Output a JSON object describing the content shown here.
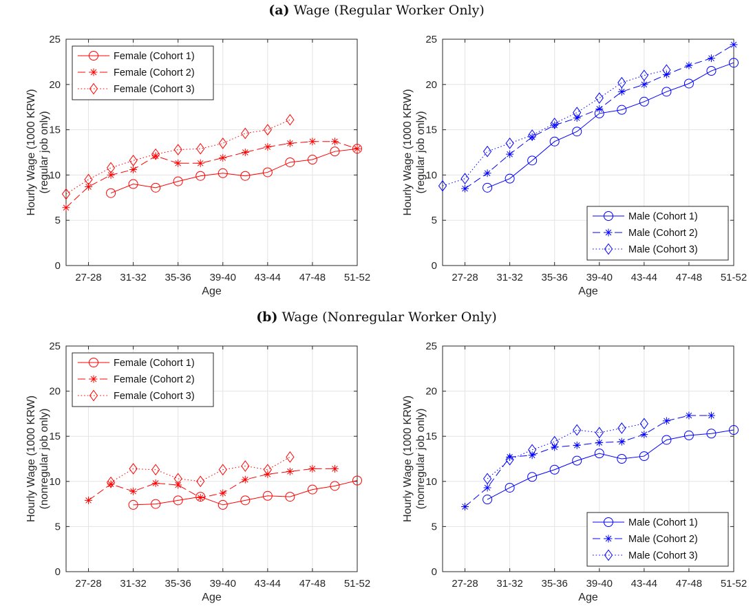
{
  "titles": {
    "a_prefix": "(a)",
    "a_text": "Wage (Regular Worker Only)",
    "b_prefix": "(b)",
    "b_text": "Wage (Nonregular Worker Only)"
  },
  "colors": {
    "female": "#ff0000",
    "male": "#0000ff",
    "grid": "#e3e3e3",
    "axis": "#262626"
  },
  "chart_data": [
    {
      "id": "a-female",
      "type": "line",
      "xlabel": "Age",
      "ylabel": [
        "Hourly Wage (1000 KRW)",
        "(regular job only)"
      ],
      "x_tick_labels": [
        "27-28",
        "31-32",
        "35-36",
        "39-40",
        "43-44",
        "47-48",
        "51-52"
      ],
      "xlim": [
        26,
        52
      ],
      "ylim": [
        0,
        25
      ],
      "yticks": [
        0,
        5,
        10,
        15,
        20,
        25
      ],
      "grid": true,
      "legend_position": "top-left",
      "color": "female",
      "series": [
        {
          "name": "Female (Cohort 1)",
          "style": "solid",
          "marker": "circle",
          "x": [
            30,
            32,
            34,
            36,
            38,
            40,
            42,
            44,
            46,
            48,
            50,
            52
          ],
          "values": [
            8.0,
            9.0,
            8.6,
            9.3,
            9.9,
            10.2,
            9.9,
            10.3,
            11.4,
            11.7,
            12.6,
            12.9
          ]
        },
        {
          "name": "Female (Cohort 2)",
          "style": "dashed",
          "marker": "star",
          "x": [
            26,
            28,
            30,
            32,
            34,
            36,
            38,
            40,
            42,
            44,
            46,
            48,
            50,
            52
          ],
          "values": [
            6.4,
            8.7,
            10.0,
            10.6,
            12.1,
            11.3,
            11.3,
            11.9,
            12.5,
            13.1,
            13.5,
            13.7,
            13.7,
            12.9
          ]
        },
        {
          "name": "Female (Cohort 3)",
          "style": "dotted",
          "marker": "diamond",
          "x": [
            26,
            28,
            30,
            32,
            34,
            36,
            38,
            40,
            42,
            44,
            46
          ],
          "values": [
            7.9,
            9.5,
            10.8,
            11.6,
            12.3,
            12.8,
            12.9,
            13.5,
            14.6,
            15.0,
            16.1
          ]
        }
      ]
    },
    {
      "id": "a-male",
      "type": "line",
      "xlabel": "Age",
      "ylabel": [
        "Hourly Wage (1000 KRW)",
        "(regular job only)"
      ],
      "x_tick_labels": [
        "27-28",
        "31-32",
        "35-36",
        "39-40",
        "43-44",
        "47-48",
        "51-52"
      ],
      "xlim": [
        26,
        52
      ],
      "ylim": [
        0,
        25
      ],
      "yticks": [
        0,
        5,
        10,
        15,
        20,
        25
      ],
      "grid": true,
      "legend_position": "bottom-right",
      "color": "male",
      "series": [
        {
          "name": "Male (Cohort 1)",
          "style": "solid",
          "marker": "circle",
          "x": [
            30,
            32,
            34,
            36,
            38,
            40,
            42,
            44,
            46,
            48,
            50,
            52
          ],
          "values": [
            8.6,
            9.6,
            11.6,
            13.7,
            14.8,
            16.8,
            17.2,
            18.1,
            19.2,
            20.1,
            21.5,
            22.4
          ]
        },
        {
          "name": "Male (Cohort 2)",
          "style": "dashed",
          "marker": "star",
          "x": [
            28,
            30,
            32,
            34,
            36,
            38,
            40,
            42,
            44,
            46,
            48,
            50,
            52
          ],
          "values": [
            8.5,
            10.2,
            12.3,
            14.2,
            15.5,
            16.3,
            17.3,
            19.2,
            20.0,
            21.1,
            22.1,
            22.9,
            24.4
          ]
        },
        {
          "name": "Male (Cohort 3)",
          "style": "dotted",
          "marker": "diamond",
          "x": [
            26,
            28,
            30,
            32,
            34,
            36,
            38,
            40,
            42,
            44,
            46
          ],
          "values": [
            8.8,
            9.6,
            12.6,
            13.5,
            14.4,
            15.7,
            16.9,
            18.5,
            20.2,
            21.0,
            21.6
          ]
        }
      ]
    },
    {
      "id": "b-female",
      "type": "line",
      "xlabel": "Age",
      "ylabel": [
        "Hourly Wage (1000 KRW)",
        "(nonregular job only)"
      ],
      "x_tick_labels": [
        "27-28",
        "31-32",
        "35-36",
        "39-40",
        "43-44",
        "47-48",
        "51-52"
      ],
      "xlim": [
        26,
        52
      ],
      "ylim": [
        0,
        25
      ],
      "yticks": [
        0,
        5,
        10,
        15,
        20,
        25
      ],
      "grid": true,
      "legend_position": "top-left",
      "color": "female",
      "series": [
        {
          "name": "Female (Cohort 1)",
          "style": "solid",
          "marker": "circle",
          "x": [
            32,
            34,
            36,
            38,
            40,
            42,
            44,
            46,
            48,
            50,
            52
          ],
          "values": [
            7.4,
            7.5,
            7.9,
            8.3,
            7.4,
            7.9,
            8.4,
            8.3,
            9.1,
            9.5,
            10.1
          ]
        },
        {
          "name": "Female (Cohort 2)",
          "style": "dashed",
          "marker": "star",
          "x": [
            28,
            30,
            32,
            34,
            36,
            38,
            40,
            42,
            44,
            46,
            48,
            50
          ],
          "values": [
            7.9,
            9.7,
            8.9,
            9.8,
            9.6,
            8.2,
            8.7,
            10.2,
            10.8,
            11.1,
            11.4,
            11.4
          ]
        },
        {
          "name": "Female (Cohort 3)",
          "style": "dotted",
          "marker": "diamond",
          "x": [
            30,
            32,
            34,
            36,
            38,
            40,
            42,
            44,
            46
          ],
          "values": [
            9.9,
            11.4,
            11.3,
            10.3,
            10.0,
            11.3,
            11.7,
            11.3,
            12.7
          ]
        }
      ]
    },
    {
      "id": "b-male",
      "type": "line",
      "xlabel": "Age",
      "ylabel": [
        "Hourly Wage (1000 KRW)",
        "(nonregular job only)"
      ],
      "x_tick_labels": [
        "27-28",
        "31-32",
        "35-36",
        "39-40",
        "43-44",
        "47-48",
        "51-52"
      ],
      "xlim": [
        26,
        52
      ],
      "ylim": [
        0,
        25
      ],
      "yticks": [
        0,
        5,
        10,
        15,
        20,
        25
      ],
      "grid": true,
      "legend_position": "bottom-right",
      "color": "male",
      "series": [
        {
          "name": "Male (Cohort 1)",
          "style": "solid",
          "marker": "circle",
          "x": [
            30,
            32,
            34,
            36,
            38,
            40,
            42,
            44,
            46,
            48,
            50,
            52
          ],
          "values": [
            8.0,
            9.3,
            10.5,
            11.3,
            12.3,
            13.1,
            12.5,
            12.8,
            14.6,
            15.1,
            15.3,
            15.7
          ]
        },
        {
          "name": "Male (Cohort 2)",
          "style": "dashed",
          "marker": "star",
          "x": [
            28,
            30,
            32,
            34,
            36,
            38,
            40,
            42,
            44,
            46,
            48,
            50
          ],
          "values": [
            7.2,
            9.3,
            12.7,
            12.9,
            13.8,
            14.0,
            14.3,
            14.4,
            15.2,
            16.7,
            17.3,
            17.3
          ]
        },
        {
          "name": "Male (Cohort 3)",
          "style": "dotted",
          "marker": "diamond",
          "x": [
            30,
            32,
            34,
            36,
            38,
            40,
            42,
            44
          ],
          "values": [
            10.3,
            12.4,
            13.5,
            14.4,
            15.7,
            15.4,
            15.9,
            16.4
          ]
        }
      ]
    }
  ]
}
